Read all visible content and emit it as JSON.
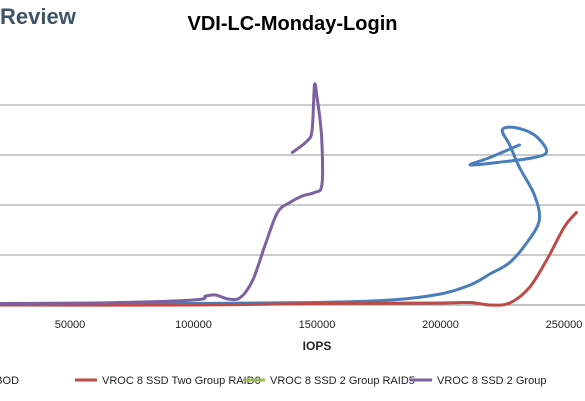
{
  "header": {
    "brand": "Review"
  },
  "chart_data": {
    "type": "line",
    "title": "VDI-LC-Monday-Login",
    "xlabel": "IOPS",
    "ylabel": "",
    "xticks": [
      50000,
      100000,
      150000,
      200000,
      250000
    ],
    "xlim": [
      0,
      255000
    ],
    "ylim": [
      0,
      5
    ],
    "grid": true,
    "legend_position": "bottom",
    "series": [
      {
        "name": "SSD JBOD",
        "color": "#4a7ebb",
        "points": [
          [
            0,
            0.02
          ],
          [
            100000,
            0.03
          ],
          [
            150000,
            0.05
          ],
          [
            180000,
            0.1
          ],
          [
            200000,
            0.22
          ],
          [
            212000,
            0.4
          ],
          [
            220000,
            0.62
          ],
          [
            228000,
            0.85
          ],
          [
            235000,
            1.25
          ],
          [
            240000,
            1.7
          ],
          [
            238000,
            2.2
          ],
          [
            232000,
            2.75
          ],
          [
            228000,
            3.2
          ],
          [
            225000,
            3.5
          ],
          [
            230000,
            3.55
          ],
          [
            238000,
            3.4
          ],
          [
            243000,
            3.08
          ],
          [
            238000,
            2.95
          ],
          [
            223000,
            2.85
          ],
          [
            212000,
            2.8
          ],
          [
            220000,
            2.95
          ],
          [
            232000,
            3.2
          ]
        ]
      },
      {
        "name": "VROC 8 SSD Two Group RAID0",
        "color": "#be4b48",
        "points": [
          [
            0,
            0.0
          ],
          [
            100000,
            0.0
          ],
          [
            150000,
            0.03
          ],
          [
            200000,
            0.04
          ],
          [
            212000,
            0.05
          ],
          [
            220000,
            0.0
          ],
          [
            228000,
            0.04
          ],
          [
            236000,
            0.35
          ],
          [
            243000,
            0.9
          ],
          [
            250000,
            1.55
          ],
          [
            255000,
            1.85
          ]
        ]
      },
      {
        "name": "VROC 8 SSD 2 Group RAID5",
        "color": "#98b954",
        "points": []
      },
      {
        "name": "VROC 8 SSD 2 Group",
        "color": "#7d60a0",
        "points": [
          [
            0,
            0.03
          ],
          [
            60000,
            0.04
          ],
          [
            100000,
            0.1
          ],
          [
            105000,
            0.18
          ],
          [
            109000,
            0.2
          ],
          [
            114000,
            0.12
          ],
          [
            119000,
            0.15
          ],
          [
            124000,
            0.5
          ],
          [
            129000,
            1.2
          ],
          [
            134000,
            1.85
          ],
          [
            139000,
            2.05
          ],
          [
            144000,
            2.18
          ],
          [
            149000,
            2.25
          ],
          [
            152000,
            2.4
          ],
          [
            152000,
            3.25
          ],
          [
            151000,
            3.8
          ],
          [
            150000,
            4.15
          ],
          [
            149000,
            4.4
          ],
          [
            148000,
            3.5
          ],
          [
            146000,
            3.28
          ],
          [
            140000,
            3.05
          ]
        ]
      }
    ]
  }
}
